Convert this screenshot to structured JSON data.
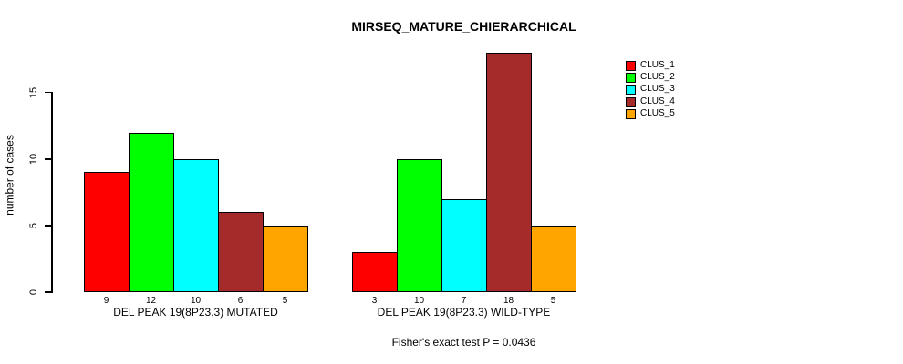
{
  "window": {
    "background_color": "#ffffff",
    "text_color": "#000000"
  },
  "chart_data": {
    "type": "bar",
    "title": "MIRSEQ_MATURE_CHIERARCHICAL",
    "xlabel": "",
    "ylabel": "number of cases",
    "ylim": [
      0,
      15
    ],
    "yticks": [
      0,
      5,
      10,
      15
    ],
    "grid": false,
    "legend_position": "right",
    "bar_value_labels_shown": true,
    "groups": [
      {
        "label": "DEL PEAK 19(8P23.3) MUTATED",
        "values": [
          9,
          12,
          10,
          6,
          5
        ]
      },
      {
        "label": "DEL PEAK 19(8P23.3) WILD-TYPE",
        "values": [
          3,
          10,
          7,
          18,
          5
        ]
      }
    ],
    "series": [
      {
        "name": "CLUS_1",
        "color": "#FF0000"
      },
      {
        "name": "CLUS_2",
        "color": "#00FF00"
      },
      {
        "name": "CLUS_3",
        "color": "#00FFFF"
      },
      {
        "name": "CLUS_4",
        "color": "#A52A2A"
      },
      {
        "name": "CLUS_5",
        "color": "#FFA500"
      }
    ],
    "footer": "Fisher's exact test P = 0.0436"
  }
}
